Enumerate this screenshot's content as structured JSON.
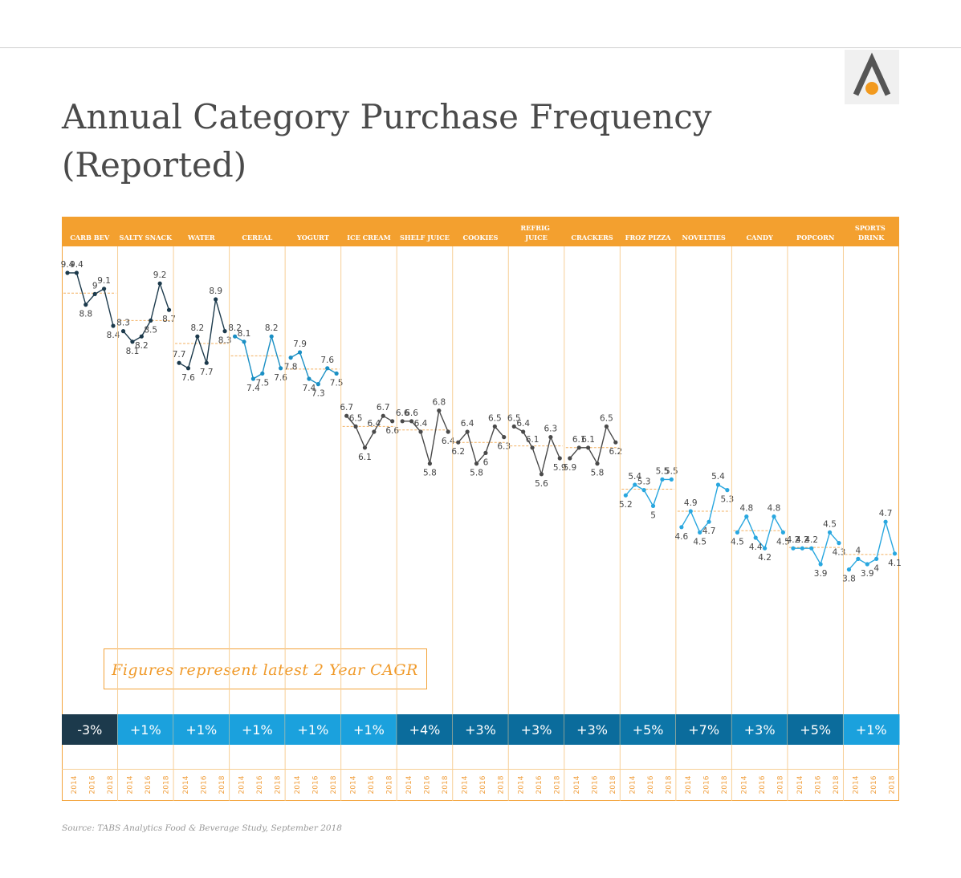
{
  "chart_data": {
    "type": "line",
    "title": "Annual Category Purchase Frequency (Reported)",
    "note": "Figures represent latest 2 Year CAGR",
    "source": "Source: TABS Analytics Food & Beverage Study, September 2018",
    "year_labels": [
      2014,
      2016,
      2018
    ],
    "ylim": [
      3,
      10
    ],
    "series": [
      {
        "name": "CARB BEV",
        "color": "#1c3a4c",
        "values": [
          9.4,
          9.4,
          8.8,
          9.0,
          9.1,
          8.4
        ],
        "cagr": "-3%",
        "cagr_color": "#1c3a4c"
      },
      {
        "name": "SALTY SNACK",
        "color": "#1c3a4c",
        "values": [
          8.3,
          8.1,
          8.2,
          8.5,
          9.2,
          8.7
        ],
        "cagr": "+1%",
        "cagr_color": "#1ba1dd"
      },
      {
        "name": "WATER",
        "color": "#1c3a4c",
        "values": [
          7.7,
          7.6,
          8.2,
          7.7,
          8.9,
          8.3
        ],
        "cagr": "+1%",
        "cagr_color": "#1ba1dd"
      },
      {
        "name": "CEREAL",
        "color": "#1a8fc4",
        "values": [
          8.2,
          8.1,
          7.4,
          7.5,
          8.2,
          7.6
        ],
        "cagr": "+1%",
        "cagr_color": "#1ba1dd"
      },
      {
        "name": "YOGURT",
        "color": "#1a8fc4",
        "values": [
          7.8,
          7.9,
          7.4,
          7.3,
          7.6,
          7.5
        ],
        "cagr": "+1%",
        "cagr_color": "#1ba1dd"
      },
      {
        "name": "ICE CREAM",
        "color": "#4a4a4a",
        "values": [
          6.7,
          6.5,
          6.1,
          6.4,
          6.7,
          6.6
        ],
        "cagr": "+1%",
        "cagr_color": "#1ba1dd"
      },
      {
        "name": "SHELF JUICE",
        "color": "#4a4a4a",
        "values": [
          6.6,
          6.6,
          6.4,
          5.8,
          6.8,
          6.4
        ],
        "cagr": "+4%",
        "cagr_color": "#0b6c9c"
      },
      {
        "name": "COOKIES",
        "color": "#4a4a4a",
        "values": [
          6.2,
          6.4,
          5.8,
          6.0,
          6.5,
          6.3
        ],
        "cagr": "+3%",
        "cagr_color": "#0b6c9c"
      },
      {
        "name": "REFRIG JUICE",
        "color": "#4a4a4a",
        "values": [
          6.5,
          6.4,
          6.1,
          5.6,
          6.3,
          5.9
        ],
        "cagr": "+3%",
        "cagr_color": "#0b6c9c"
      },
      {
        "name": "CRACKERS",
        "color": "#4a4a4a",
        "values": [
          5.9,
          6.1,
          6.1,
          5.8,
          6.5,
          6.2
        ],
        "cagr": "+3%",
        "cagr_color": "#0b6c9c"
      },
      {
        "name": "FROZ PIZZA",
        "color": "#29a7df",
        "values": [
          5.2,
          5.4,
          5.3,
          5.0,
          5.5,
          5.5
        ],
        "cagr": "+5%",
        "cagr_color": "#0d76a8"
      },
      {
        "name": "NOVELTIES",
        "color": "#29a7df",
        "values": [
          4.6,
          4.9,
          4.5,
          4.7,
          5.4,
          5.3
        ],
        "cagr": "+7%",
        "cagr_color": "#0b6c9c"
      },
      {
        "name": "CANDY",
        "color": "#29a7df",
        "values": [
          4.5,
          4.8,
          4.4,
          4.2,
          4.8,
          4.5
        ],
        "cagr": "+3%",
        "cagr_color": "#0f80b5"
      },
      {
        "name": "POPCORN",
        "color": "#29a7df",
        "values": [
          4.2,
          4.2,
          4.2,
          3.9,
          4.5,
          4.3
        ],
        "cagr": "+5%",
        "cagr_color": "#0b6c9c"
      },
      {
        "name": "SPORTS DRINK",
        "color": "#29a7df",
        "values": [
          3.8,
          4.0,
          3.9,
          4.0,
          4.7,
          4.1
        ],
        "cagr": "+1%",
        "cagr_color": "#1ba1dd"
      }
    ]
  }
}
